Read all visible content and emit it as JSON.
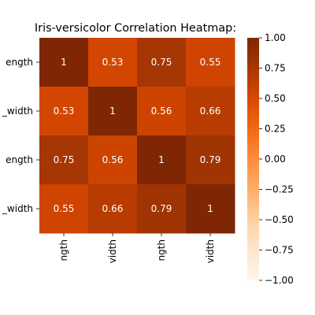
{
  "chart_data": {
    "type": "heatmap",
    "title": "Iris-versicolor Correlation Heatmap:",
    "row_labels": [
      "_length",
      "_width",
      "_length",
      "_width"
    ],
    "row_labels_visible": [
      "ength",
      "_width",
      "ength",
      "_width"
    ],
    "col_labels_visible": [
      "ngth",
      "vidth",
      "ngth",
      "vidth"
    ],
    "values": [
      [
        1,
        0.53,
        0.75,
        0.55
      ],
      [
        0.53,
        1,
        0.56,
        0.66
      ],
      [
        0.75,
        0.56,
        1,
        0.79
      ],
      [
        0.55,
        0.66,
        0.79,
        1
      ]
    ],
    "cell_text": [
      [
        "1",
        "0.53",
        "0.75",
        "0.55"
      ],
      [
        "0.53",
        "1",
        "0.56",
        "0.66"
      ],
      [
        "0.75",
        "0.56",
        "1",
        "0.79"
      ],
      [
        "0.55",
        "0.66",
        "0.79",
        "1"
      ]
    ],
    "vmin": -1.0,
    "vmax": 1.0,
    "colormap": "Oranges",
    "colorbar_ticks": [
      1.0,
      0.75,
      0.5,
      0.25,
      0.0,
      -0.25,
      -0.5,
      -0.75,
      -1.0
    ],
    "colorbar_tick_labels": [
      "1.00",
      "0.75",
      "0.50",
      "0.25",
      "0.00",
      "−0.25",
      "−0.50",
      "−0.75",
      "−1.00"
    ],
    "annotation_color": "#ffffff",
    "legend": "colorbar-right"
  }
}
